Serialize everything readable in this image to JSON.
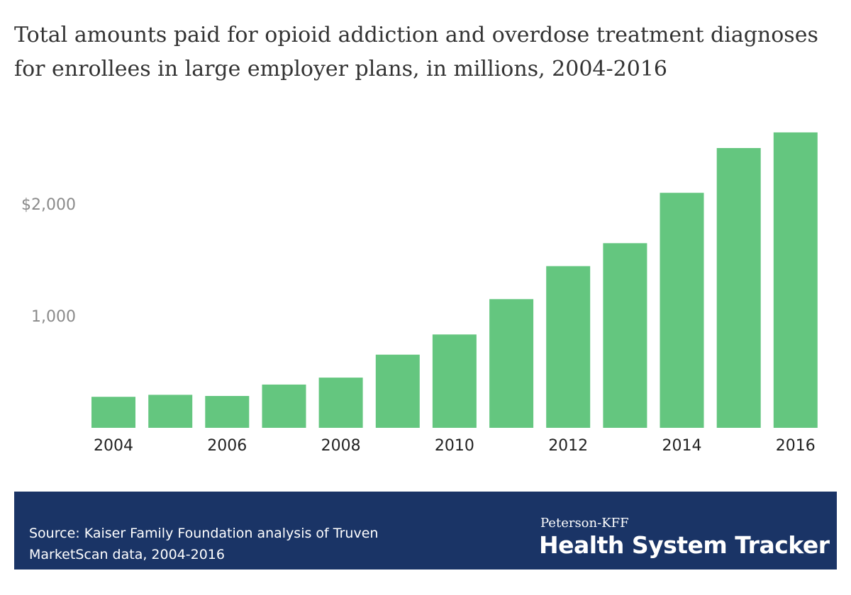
{
  "title": "Total amounts paid for opioid addiction and overdose treatment diagnoses for enrollees in large employer plans, in millions, 2004-2016",
  "source": "Source: Kaiser Family Foundation analysis of Truven MarketScan data, 2004-2016",
  "brand": {
    "top": "Peterson-KFF",
    "name": "Health System Tracker"
  },
  "colors": {
    "bar": "#64c67f",
    "footer": "#1a3466"
  },
  "chart_data": {
    "type": "bar",
    "categories": [
      "2004",
      "2005",
      "2006",
      "2007",
      "2008",
      "2009",
      "2010",
      "2011",
      "2012",
      "2013",
      "2014",
      "2015",
      "2016"
    ],
    "values": [
      277,
      295,
      285,
      387,
      449,
      654,
      834,
      1150,
      1445,
      1650,
      2100,
      2500,
      2640
    ],
    "x_tick_labels": [
      "2004",
      "",
      "2006",
      "",
      "2008",
      "",
      "2010",
      "",
      "2012",
      "",
      "2014",
      "",
      "2016"
    ],
    "y_ticks": [
      {
        "value": 1000,
        "label": "1,000"
      },
      {
        "value": 2000,
        "label": "$2,000"
      }
    ],
    "ylim": [
      0,
      2850
    ],
    "grid": false,
    "xlabel": "",
    "ylabel": ""
  }
}
